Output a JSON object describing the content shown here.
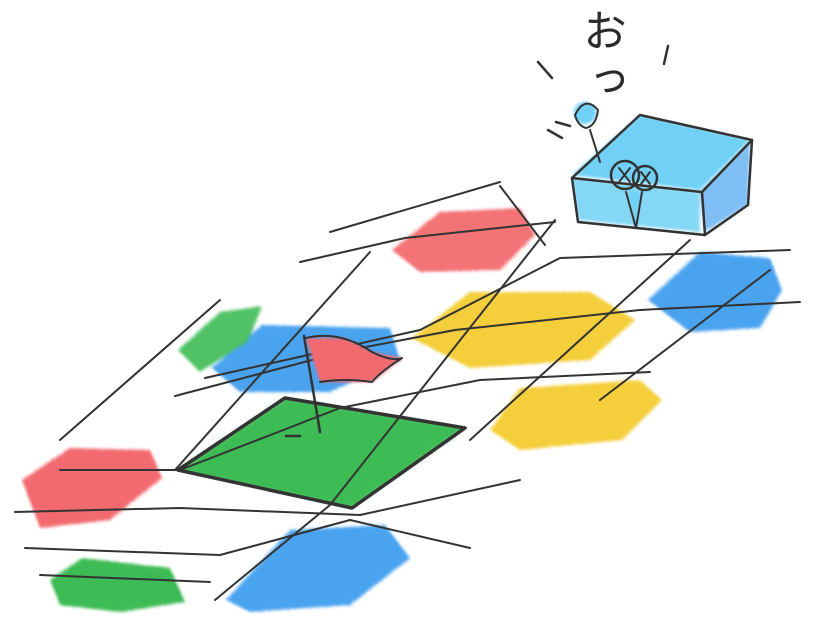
{
  "scene": {
    "exclamation_text": "おっ"
  },
  "palette": {
    "red": "#f26b6f",
    "yellow": "#f4cf3a",
    "blue": "#4aa3ef",
    "green": "#3ebb55",
    "light_blue": "#6fd0f5",
    "pencil": "#333333"
  },
  "icons": [
    "flag-icon",
    "character-face-icon",
    "treasure-box-icon"
  ]
}
